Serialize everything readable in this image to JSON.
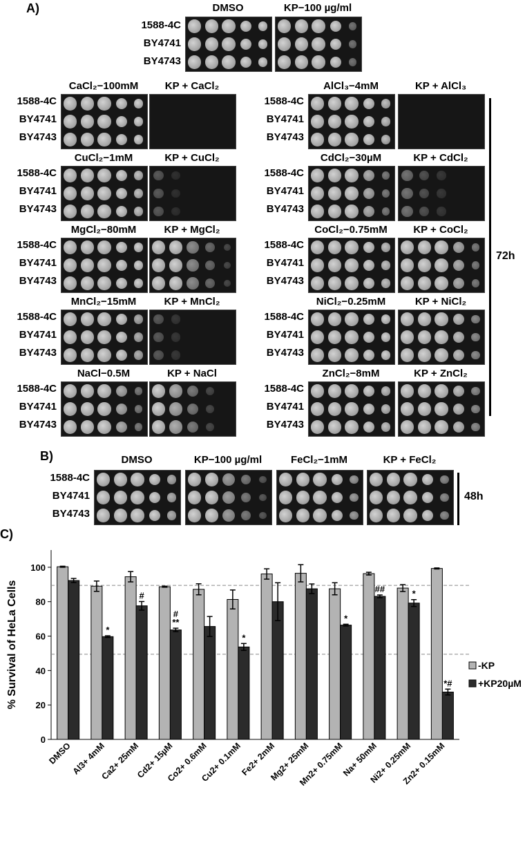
{
  "panel_a": {
    "label": "A)",
    "time_label": "72h",
    "strains": [
      "1588-4C",
      "BY4741",
      "BY4743"
    ],
    "top": {
      "headers": [
        "DMSO",
        "KP−100 µg/ml"
      ],
      "growth": [
        [
          1,
          1,
          1,
          1,
          1
        ],
        [
          1,
          1,
          1,
          1,
          0.45
        ]
      ]
    },
    "rows": [
      {
        "left": {
          "cond": "CaCl₂−100mM",
          "kp": "KP + CaCl₂",
          "growth": [
            [
              1,
              1,
              1,
              1,
              1
            ],
            [
              0,
              0,
              0,
              0,
              0
            ]
          ]
        },
        "right": {
          "cond": "AlCl₃−4mM",
          "kp": "KP + AlCl₃",
          "growth": [
            [
              1,
              1,
              1,
              1,
              0.9
            ],
            [
              0,
              0,
              0,
              0,
              0
            ]
          ]
        }
      },
      {
        "left": {
          "cond": "CuCl₂−1mM",
          "kp": "KP + CuCl₂",
          "growth": [
            [
              1,
              1,
              1,
              1,
              0.9
            ],
            [
              0.3,
              0.05,
              0,
              0,
              0
            ]
          ]
        },
        "right": {
          "cond": "CdCl₂−30µM",
          "kp": "KP + CdCl₂",
          "growth": [
            [
              1,
              1,
              1,
              0.8,
              0.5
            ],
            [
              0.45,
              0.25,
              0.1,
              0,
              0
            ]
          ]
        }
      },
      {
        "left": {
          "cond": "MgCl₂−80mM",
          "kp": "KP + MgCl₂",
          "growth": [
            [
              1,
              1,
              1,
              1,
              1
            ],
            [
              1,
              1,
              0.6,
              0.4,
              0.2
            ]
          ]
        },
        "right": {
          "cond": "CoCl₂−0.75mM",
          "kp": "KP + CoCl₂",
          "growth": [
            [
              1,
              1,
              1,
              1,
              0.9
            ],
            [
              1,
              1,
              1,
              0.8,
              0.5
            ]
          ]
        }
      },
      {
        "left": {
          "cond": "MnCl₂−15mM",
          "kp": "KP + MnCl₂",
          "growth": [
            [
              1,
              1,
              1,
              1,
              0.8
            ],
            [
              0.3,
              0.1,
              0,
              0,
              0
            ]
          ]
        },
        "right": {
          "cond": "NiCl₂−0.25mM",
          "kp": "KP + NiCl₂",
          "growth": [
            [
              1,
              1,
              1,
              1,
              1
            ],
            [
              1,
              1,
              1,
              0.9,
              0.6
            ]
          ]
        }
      },
      {
        "left": {
          "cond": "NaCl−0.5M",
          "kp": "KP + NaCl",
          "growth": [
            [
              1,
              1,
              1,
              0.8,
              0.5
            ],
            [
              1,
              0.8,
              0.5,
              0.2,
              0
            ]
          ]
        },
        "right": {
          "cond": "ZnCl₂−8mM",
          "kp": "KP + ZnCl₂",
          "growth": [
            [
              1,
              1,
              1,
              1,
              0.9
            ],
            [
              1,
              1,
              1,
              0.9,
              0.6
            ]
          ]
        }
      }
    ]
  },
  "panel_b": {
    "label": "B)",
    "time_label": "48h",
    "strains": [
      "1588-4C",
      "BY4741",
      "BY4743"
    ],
    "headers": [
      "DMSO",
      "KP−100 µg/ml",
      "FeCl₂−1mM",
      "KP + FeCl₂"
    ],
    "growth": [
      [
        1,
        1,
        1,
        1,
        0.8
      ],
      [
        1,
        1,
        0.7,
        0.5,
        0.3
      ],
      [
        1,
        1,
        1,
        1,
        0.7
      ],
      [
        1,
        1,
        1,
        1,
        0.6
      ]
    ]
  },
  "panel_c": {
    "label": "C)"
  },
  "chart_data": {
    "type": "bar",
    "title": "",
    "xlabel": "",
    "ylabel": "% Survival of HeLa Cells",
    "ylim": [
      0,
      110
    ],
    "yticks": [
      0,
      20,
      40,
      60,
      80,
      100
    ],
    "grid": false,
    "reference_lines": [
      89.5,
      49.5
    ],
    "legend_position": "right",
    "categories": [
      "DMSO",
      "Al3+ 4mM",
      "Ca2+ 25mM",
      "Cd2+ 15µM",
      "Co2+ 0.6mM",
      "Cu2+ 0.1mM",
      "Fe2+ 2mM",
      "Mg2+ 25mM",
      "Mn2+ 0.75mM",
      "Na+ 50mM",
      "Ni2+ 0.25mM",
      "Zn2+ 0.15mM"
    ],
    "series": [
      {
        "name": "-KP",
        "color": "#b3b3b3",
        "values": [
          100.3,
          89,
          94.5,
          88.7,
          87.2,
          81.3,
          96.1,
          96.5,
          87.5,
          96.3,
          87.9,
          99.3
        ],
        "errors": [
          0.3,
          3,
          3,
          0.3,
          3.2,
          5.5,
          3,
          5,
          3.5,
          0.8,
          2,
          0.3
        ],
        "annotations": [
          "",
          "",
          "",
          "",
          "",
          "",
          "",
          "",
          "",
          "",
          "",
          ""
        ]
      },
      {
        "name": "+KP20µM",
        "color": "#2b2b2b",
        "values": [
          92.3,
          59.7,
          77.6,
          63.6,
          65.6,
          53.7,
          80,
          87.5,
          66.4,
          83.1,
          79.2,
          27.5
        ],
        "errors": [
          1.2,
          0.5,
          2.5,
          1,
          5.8,
          2,
          11,
          2.8,
          0.5,
          0.8,
          2,
          1.7
        ],
        "annotations": [
          "",
          "*",
          "#",
          "#\n**",
          "",
          "*",
          "",
          "",
          "*",
          "##",
          "*",
          "*#"
        ]
      }
    ]
  }
}
